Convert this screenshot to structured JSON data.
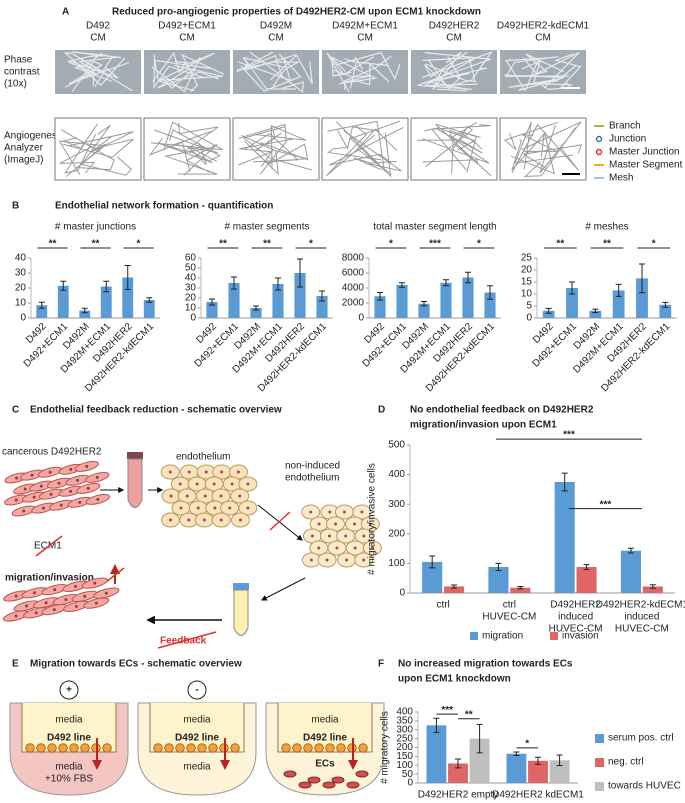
{
  "figure": {
    "panel_a": {
      "letter": "A",
      "title": "Reduced pro-angiogenic properties of D492HER2-CM upon ECM1 knockdown",
      "columns": [
        [
          "D492",
          "CM"
        ],
        [
          "D492+ECM1",
          "CM"
        ],
        [
          "D492M",
          "CM"
        ],
        [
          "D492M+ECM1",
          "CM"
        ],
        [
          "D492HER2",
          "CM"
        ],
        [
          "D492HER2-kdECM1",
          "CM"
        ]
      ],
      "rows": [
        [
          "Phase",
          "contrast",
          "(10x)"
        ],
        [
          "Angiogenesis",
          "Analyzer",
          "(ImageJ)"
        ]
      ],
      "legend": [
        "Branch",
        "Junction",
        "Master Junction",
        "Master Segment",
        "Mesh"
      ]
    },
    "panel_b": {
      "letter": "B",
      "title": "Endothelial network formation - quantification"
    },
    "panel_c": {
      "letter": "C",
      "title": "Endothelial feedback reduction - schematic overview",
      "cancerous": "cancerous D492HER2",
      "endothelium": "endothelium",
      "non_induced": [
        "non-induced",
        "endothelium"
      ],
      "ecm1": "ECM1",
      "migration": "migration/invasion",
      "feedback": "Feedback"
    },
    "panel_d": {
      "letter": "D"
    },
    "panel_e": {
      "letter": "E",
      "title": "Migration towards ECs - schematic overview",
      "conditions": [
        {
          "sign": "+",
          "top": "media",
          "line": "D492 line",
          "bottom": [
            "media",
            "+10% FBS"
          ]
        },
        {
          "sign": "-",
          "top": "media",
          "line": "D492 line",
          "bottom": [
            "media"
          ]
        },
        {
          "top": "media",
          "line": "D492 line",
          "bottom": [
            "ECs"
          ]
        }
      ]
    },
    "panel_f": {
      "letter": "F"
    }
  },
  "chart_data": [
    {
      "type": "bar",
      "title": "# master junctions",
      "categories": [
        "D492",
        "D492+ECM1",
        "D492M",
        "D492M+ECM1",
        "D492HER2",
        "D492HER2-kdECM1"
      ],
      "values": [
        8.5,
        21.5,
        5,
        21,
        27,
        12
      ],
      "errors": [
        2,
        3,
        1.5,
        3.5,
        8,
        1.5
      ],
      "color": "#5b9bd5",
      "ylim": [
        0,
        40
      ],
      "yticks": [
        0,
        10,
        20,
        30,
        40
      ],
      "annotations": [
        "**",
        "**",
        "*"
      ]
    },
    {
      "type": "bar",
      "title": "# master segments",
      "categories": [
        "D492",
        "D492+ECM1",
        "D492M",
        "D492M+ECM1",
        "D492HER2",
        "D492HER2-kdECM1"
      ],
      "values": [
        16,
        35,
        10,
        34,
        45,
        22
      ],
      "errors": [
        3,
        6,
        2,
        6,
        14,
        5
      ],
      "color": "#5b9bd5",
      "ylim": [
        0,
        60
      ],
      "yticks": [
        0,
        10,
        20,
        30,
        40,
        50,
        60
      ],
      "annotations": [
        "**",
        "**",
        "*"
      ]
    },
    {
      "type": "bar",
      "title": "total master segment length",
      "categories": [
        "D492",
        "D492+ECM1",
        "D492M",
        "D492M+ECM1",
        "D492HER2",
        "D492HER2-kdECM1"
      ],
      "values": [
        2900,
        4400,
        1900,
        4700,
        5400,
        3400
      ],
      "errors": [
        500,
        300,
        300,
        400,
        700,
        900
      ],
      "color": "#5b9bd5",
      "ylim": [
        0,
        8000
      ],
      "yticks": [
        0,
        2000,
        4000,
        6000,
        8000
      ],
      "annotations": [
        "*",
        "***",
        "*"
      ]
    },
    {
      "type": "bar",
      "title": "# meshes",
      "categories": [
        "D492",
        "D492+ECM1",
        "D492M",
        "D492M+ECM1",
        "D492HER2",
        "D492HER2-kdECM1"
      ],
      "values": [
        3,
        12.5,
        3,
        11.5,
        16.5,
        5.5
      ],
      "errors": [
        1,
        2.5,
        0.7,
        2.5,
        6,
        1
      ],
      "color": "#5b9bd5",
      "ylim": [
        0,
        25
      ],
      "yticks": [
        0,
        5,
        10,
        15,
        20,
        25
      ],
      "annotations": [
        "**",
        "**",
        "*"
      ]
    },
    {
      "type": "bar",
      "title": [
        "No endothelial feedback on D492HER2",
        "migration/invasion upon ECM1"
      ],
      "ylabel": "# migratory/invasive cells",
      "categories": [
        [
          "ctrl"
        ],
        [
          "ctrl",
          "HUVEC-CM"
        ],
        [
          "D492HER2",
          "induced",
          "HUVEC-CM"
        ],
        [
          "D492HER2-kdECM1",
          "induced",
          "HUVEC-CM"
        ]
      ],
      "series": [
        {
          "name": "migration",
          "color": "#5b9bd5",
          "values": [
            105,
            88,
            375,
            143
          ],
          "errors": [
            20,
            12,
            30,
            8
          ]
        },
        {
          "name": "invasion",
          "color": "#e06666",
          "values": [
            22,
            18,
            88,
            22
          ],
          "errors": [
            5,
            4,
            8,
            6
          ]
        }
      ],
      "ylim": [
        0,
        500
      ],
      "yticks": [
        0,
        100,
        200,
        300,
        400,
        500
      ],
      "legend": "bottom",
      "annotations": [
        "***",
        "***"
      ]
    },
    {
      "type": "bar",
      "title": [
        "No increased migration towards ECs",
        "upon ECM1 knockdown"
      ],
      "ylabel": "# migratory cells",
      "categories": [
        "D492HER2 empty",
        "D492HER2 kdECM1"
      ],
      "series": [
        {
          "name": "serum pos. ctrl",
          "color": "#5b9bd5",
          "values": [
            325,
            165
          ],
          "errors": [
            40,
            10
          ]
        },
        {
          "name": "neg. ctrl",
          "color": "#e06666",
          "values": [
            110,
            125
          ],
          "errors": [
            25,
            20
          ]
        },
        {
          "name": "towards HUVEC",
          "color": "#bfbfbf",
          "values": [
            250,
            128
          ],
          "errors": [
            80,
            30
          ]
        }
      ],
      "ylim": [
        0,
        400
      ],
      "yticks": [
        0,
        50,
        100,
        150,
        200,
        250,
        300,
        350,
        400
      ],
      "legend": "right",
      "annotations": [
        "***",
        "**",
        "*"
      ]
    }
  ]
}
